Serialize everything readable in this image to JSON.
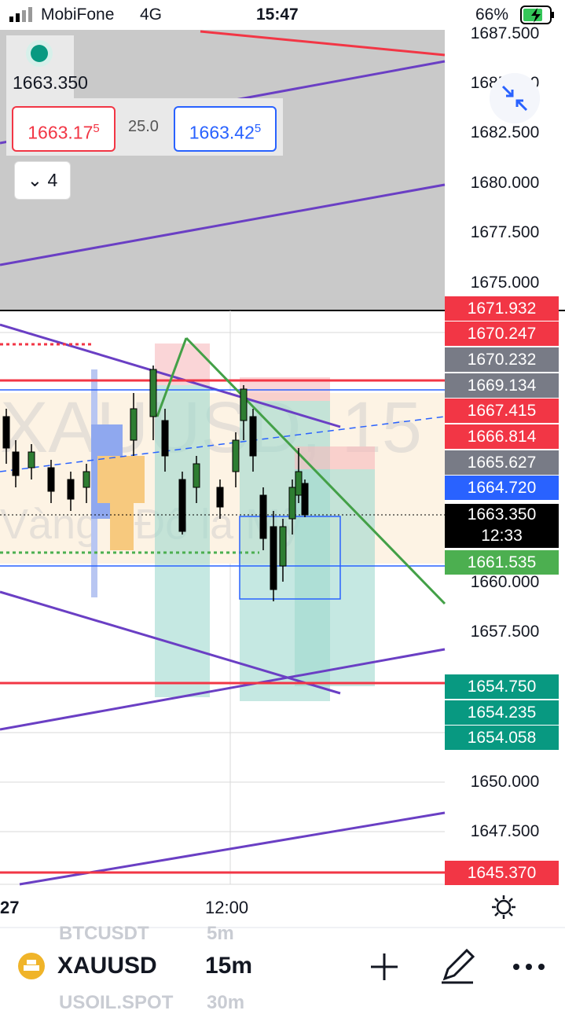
{
  "status_bar": {
    "carrier": "MobiFone",
    "network": "4G",
    "time": "15:47",
    "battery": "66%"
  },
  "quote_panel": {
    "last_price": "1663.350",
    "bid": {
      "price": "1663.17",
      "pipette": "5"
    },
    "spread": "25.0",
    "ask": {
      "price": "1663.42",
      "pipette": "5"
    },
    "layers_count": "4"
  },
  "watermark": {
    "symbol": "XAUUSD, 15",
    "description": "Vàng / Đô la Mỹ"
  },
  "price_axis": [
    "1687.500",
    "1685.000",
    "1682.500",
    "1680.000",
    "1677.500",
    "1675.000",
    "1660.000",
    "1657.500",
    "1650.000",
    "1647.500"
  ],
  "price_tags": [
    {
      "price": "1671.932"
    },
    {
      "price": "1670.247"
    },
    {
      "price": "1670.232"
    },
    {
      "price": "1669.134"
    },
    {
      "price": "1667.415"
    },
    {
      "price": "1666.814"
    },
    {
      "price": "1665.627"
    },
    {
      "price": "1664.720"
    },
    {
      "price": "1663.350",
      "countdown": "12:33"
    },
    {
      "price": "1661.535"
    },
    {
      "price": "1654.750"
    },
    {
      "price": "1654.235"
    },
    {
      "price": "1654.058"
    },
    {
      "price": "1645.370"
    }
  ],
  "time_axis": [
    "27",
    "12:00"
  ],
  "bottom_bar": {
    "previous": {
      "symbol": "BTCUSDT",
      "interval": "5m"
    },
    "symbol": "XAUUSD",
    "interval": "15m",
    "next": {
      "symbol": "USOIL.SPOT",
      "interval": "30m"
    }
  }
}
